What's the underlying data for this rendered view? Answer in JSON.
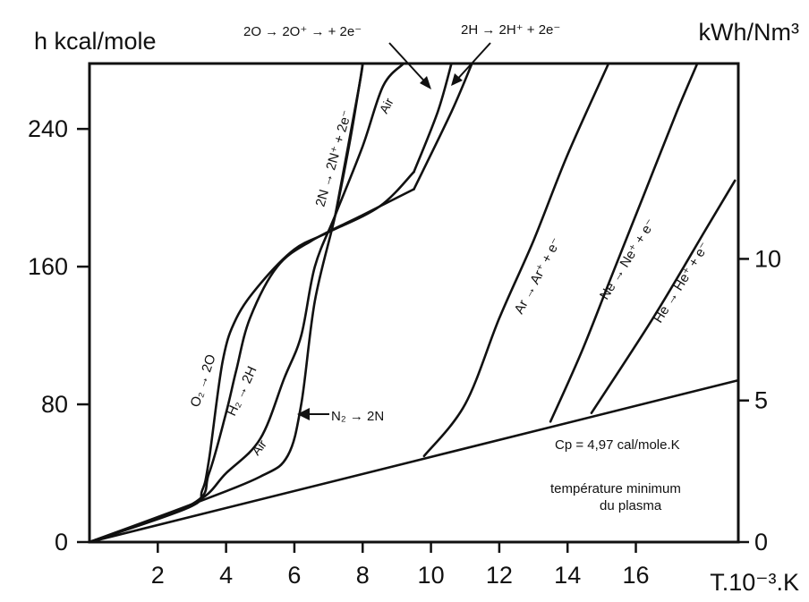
{
  "chart_data": {
    "type": "line",
    "title": "",
    "xlabel": "T.10⁻³.K",
    "ylabel": "h kcal/mole",
    "ylabel_right": "kWh/Nm³",
    "xlim": [
      0,
      19
    ],
    "ylim": [
      0,
      278
    ],
    "ylim_right": [
      0,
      16.9
    ],
    "grid": false,
    "x_ticks": [
      2,
      4,
      6,
      8,
      10,
      12,
      14,
      16
    ],
    "x_tick_labels": [
      "2",
      "4",
      "6",
      "8",
      "10",
      "12",
      "14",
      "16"
    ],
    "y_ticks": [
      0,
      80,
      160,
      240
    ],
    "y_tick_labels": [
      "0",
      "80",
      "160",
      "240"
    ],
    "y_right_ticks": [
      0,
      5,
      10
    ],
    "y_right_tick_labels": [
      "0",
      "5",
      "10"
    ],
    "series": [
      {
        "name": "O₂ → 2O",
        "points": [
          [
            0,
            0
          ],
          [
            2.9,
            20
          ],
          [
            3.3,
            30
          ],
          [
            3.5,
            48
          ],
          [
            3.9,
            105
          ],
          [
            4.3,
            130
          ],
          [
            5.0,
            150
          ],
          [
            6.0,
            170
          ],
          [
            7.0,
            180
          ],
          [
            8.5,
            195
          ],
          [
            9.5,
            215
          ]
        ]
      },
      {
        "name": "H₂ → 2H",
        "points": [
          [
            0,
            0
          ],
          [
            3.0,
            22
          ],
          [
            3.5,
            40
          ],
          [
            4.0,
            75
          ],
          [
            4.3,
            100
          ],
          [
            4.7,
            130
          ],
          [
            5.5,
            160
          ],
          [
            6.5,
            175
          ],
          [
            8.0,
            190
          ],
          [
            9.5,
            205
          ]
        ]
      },
      {
        "name": "Air",
        "points": [
          [
            0,
            0
          ],
          [
            3.0,
            22
          ],
          [
            4.0,
            40
          ],
          [
            5.0,
            60
          ],
          [
            5.7,
            95
          ],
          [
            6.2,
            120
          ],
          [
            6.6,
            160
          ],
          [
            7.2,
            190
          ],
          [
            8.0,
            230
          ],
          [
            8.6,
            265
          ],
          [
            9.2,
            278
          ]
        ]
      },
      {
        "name": "N₂ → 2N",
        "points": [
          [
            0,
            0
          ],
          [
            3.0,
            22
          ],
          [
            5.0,
            38
          ],
          [
            5.8,
            50
          ],
          [
            6.2,
            80
          ],
          [
            6.6,
            140
          ],
          [
            7.2,
            190
          ],
          [
            7.6,
            230
          ],
          [
            7.9,
            265
          ],
          [
            8.0,
            278
          ]
        ]
      },
      {
        "name": "2N → 2N⁺ + 2e⁻",
        "points": [
          [
            7.2,
            190
          ],
          [
            7.9,
            265
          ],
          [
            8.0,
            278
          ]
        ]
      },
      {
        "name": "2O → 2O⁺ → + 2e⁻",
        "points": [
          [
            9.5,
            215
          ],
          [
            10.2,
            250
          ],
          [
            10.6,
            278
          ]
        ]
      },
      {
        "name": "2H → 2H⁺ + 2e⁻",
        "points": [
          [
            9.5,
            205
          ],
          [
            10.6,
            250
          ],
          [
            11.2,
            278
          ]
        ]
      },
      {
        "name": "Ar → Ar⁺ + e⁻",
        "points": [
          [
            9.8,
            50
          ],
          [
            11.0,
            80
          ],
          [
            12.0,
            130
          ],
          [
            13.0,
            175
          ],
          [
            14.0,
            225
          ],
          [
            15.2,
            278
          ]
        ]
      },
      {
        "name": "Ne → Ne⁺ + e⁻",
        "points": [
          [
            13.5,
            70
          ],
          [
            14.4,
            110
          ],
          [
            15.2,
            150
          ],
          [
            16.2,
            200
          ],
          [
            17.2,
            250
          ],
          [
            17.8,
            278
          ]
        ]
      },
      {
        "name": "He → He⁺ + e⁻",
        "points": [
          [
            14.7,
            75
          ],
          [
            16.5,
            130
          ],
          [
            18.0,
            180
          ],
          [
            18.9,
            210
          ]
        ]
      },
      {
        "name": "Cp = 4,97 cal/mole.K",
        "points": [
          [
            0,
            0
          ],
          [
            19,
            94
          ]
        ]
      }
    ],
    "annotations": [
      {
        "text": "Cp = 4,97 cal/mole.K"
      },
      {
        "text": "température minimum"
      },
      {
        "text": "du plasma"
      }
    ]
  }
}
